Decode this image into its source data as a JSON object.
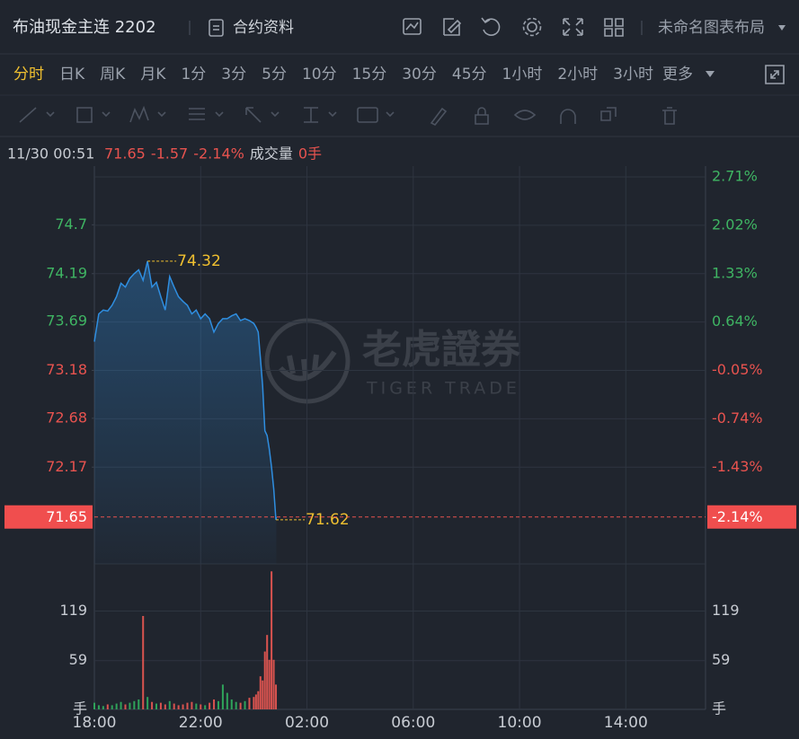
{
  "header": {
    "title": "布油现金主连 2202",
    "contract_info": "合约资料",
    "layout_name": "未命名图表布局"
  },
  "toolbar": {
    "timeframes": [
      "分时",
      "日K",
      "周K",
      "月K",
      "1分",
      "3分",
      "5分",
      "10分",
      "15分",
      "30分",
      "45分",
      "1小时",
      "2小时",
      "3小时"
    ],
    "more": "更多"
  },
  "quote": {
    "time": "11/30 00:51",
    "price": 71.65,
    "change": -1.57,
    "change_pct": "-2.14%",
    "volume_label": "成交量",
    "volume": "0手"
  },
  "watermark": {
    "name": "老虎證券",
    "brand": "TIGER TRADE"
  },
  "chart_data": {
    "type": "line",
    "price": {
      "color": "#2f8ee0",
      "x": [
        "18:00",
        "18:10",
        "18:20",
        "18:30",
        "18:40",
        "18:50",
        "19:00",
        "19:10",
        "19:20",
        "19:30",
        "19:40",
        "19:50",
        "20:00",
        "20:10",
        "20:20",
        "20:30",
        "20:40",
        "20:50",
        "21:00",
        "21:10",
        "21:20",
        "21:30",
        "21:40",
        "21:50",
        "22:00",
        "22:10",
        "22:20",
        "22:30",
        "22:40",
        "22:50",
        "23:00",
        "23:10",
        "23:20",
        "23:30",
        "23:40",
        "23:50",
        "00:00",
        "00:05",
        "00:10",
        "00:15",
        "00:20",
        "00:25",
        "00:30",
        "00:35",
        "00:40",
        "00:45",
        "00:50",
        "00:51"
      ],
      "values": [
        73.48,
        73.77,
        73.81,
        73.8,
        73.86,
        73.95,
        74.09,
        74.05,
        74.14,
        74.19,
        74.23,
        74.12,
        74.32,
        74.05,
        74.1,
        73.95,
        73.81,
        74.16,
        74.05,
        73.95,
        73.9,
        73.86,
        73.77,
        73.81,
        73.72,
        73.77,
        73.72,
        73.58,
        73.67,
        73.72,
        73.72,
        73.75,
        73.77,
        73.7,
        73.72,
        73.7,
        73.67,
        73.63,
        73.58,
        73.3,
        73.02,
        72.55,
        72.5,
        72.36,
        72.17,
        71.94,
        71.62,
        71.65
      ]
    },
    "volume": {
      "up_color": "#2fa35a",
      "down_color": "#d9534f",
      "values": [
        8,
        5,
        4,
        6,
        5,
        7,
        9,
        6,
        8,
        10,
        12,
        113,
        15,
        9,
        7,
        8,
        6,
        10,
        7,
        5,
        6,
        8,
        9,
        7,
        6,
        5,
        8,
        12,
        10,
        30,
        20,
        12,
        9,
        8,
        10,
        14,
        15,
        18,
        22,
        40,
        35,
        70,
        90,
        60,
        167,
        60,
        30,
        0
      ]
    },
    "high": {
      "x": "20:00",
      "value": 74.32
    },
    "low": {
      "x": "00:50",
      "value": 71.62
    },
    "xlim": [
      "18:00",
      "17:00"
    ],
    "xticks": [
      "18:00",
      "22:00",
      "02:00",
      "06:00",
      "10:00",
      "14:00"
    ],
    "ylim": [
      71.16,
      75.2
    ],
    "yticks": [
      74.7,
      74.19,
      73.69,
      73.18,
      72.68,
      72.17
    ],
    "y2lim": [
      -2.81,
      2.71
    ],
    "y2ticks": [
      {
        "value": 2.71,
        "label": "2.71%"
      },
      {
        "value": 2.02,
        "label": "2.02%"
      },
      {
        "value": 1.33,
        "label": "1.33%"
      },
      {
        "value": 0.64,
        "label": "0.64%"
      },
      {
        "value": -0.05,
        "label": "-0.05%"
      },
      {
        "value": -0.74,
        "label": "-0.74%"
      },
      {
        "value": -1.43,
        "label": "-1.43%"
      }
    ],
    "vlim": [
      0,
      176
    ],
    "vticks": [
      119,
      59,
      {
        "value": 0,
        "label": "手"
      }
    ],
    "up_color": "#3fb563",
    "down_color": "#e8534f",
    "grid": true
  }
}
